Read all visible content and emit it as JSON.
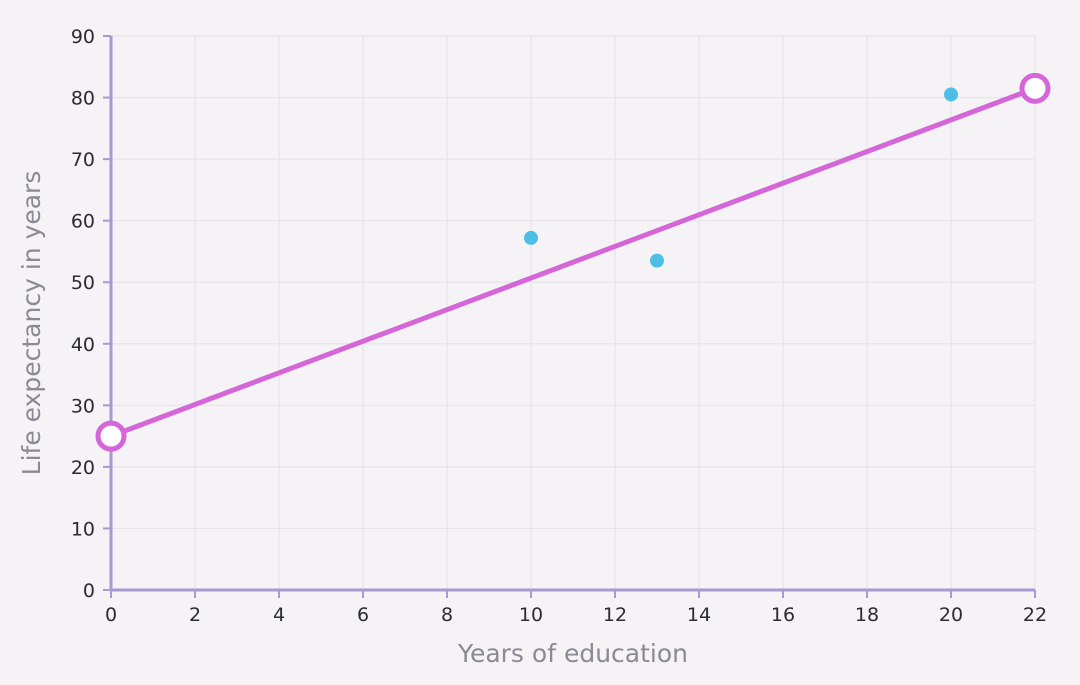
{
  "chart_data": {
    "type": "scatter",
    "xlabel": "Years of education",
    "ylabel": "Life expectancy in years",
    "xlim": [
      0,
      22
    ],
    "ylim": [
      0,
      90
    ],
    "x_ticks": [
      0,
      2,
      4,
      6,
      8,
      10,
      12,
      14,
      16,
      18,
      20,
      22
    ],
    "y_ticks": [
      0,
      10,
      20,
      30,
      40,
      50,
      60,
      70,
      80,
      90
    ],
    "grid": true,
    "legend": "none",
    "series": [
      {
        "kind": "points",
        "points": [
          {
            "x": 10,
            "y": 57.2
          },
          {
            "x": 13,
            "y": 53.5
          },
          {
            "x": 20,
            "y": 80.5
          }
        ]
      },
      {
        "kind": "line",
        "points": [
          {
            "x": 0,
            "y": 25
          },
          {
            "x": 22,
            "y": 81.5
          }
        ]
      }
    ],
    "colors": {
      "background": "#f5f3f6",
      "grid": "#e7e3ea",
      "axis": "#a79ad3",
      "points": "#4dbfe6",
      "line": "#d466d8",
      "handle_fill": "#ffffff"
    }
  }
}
